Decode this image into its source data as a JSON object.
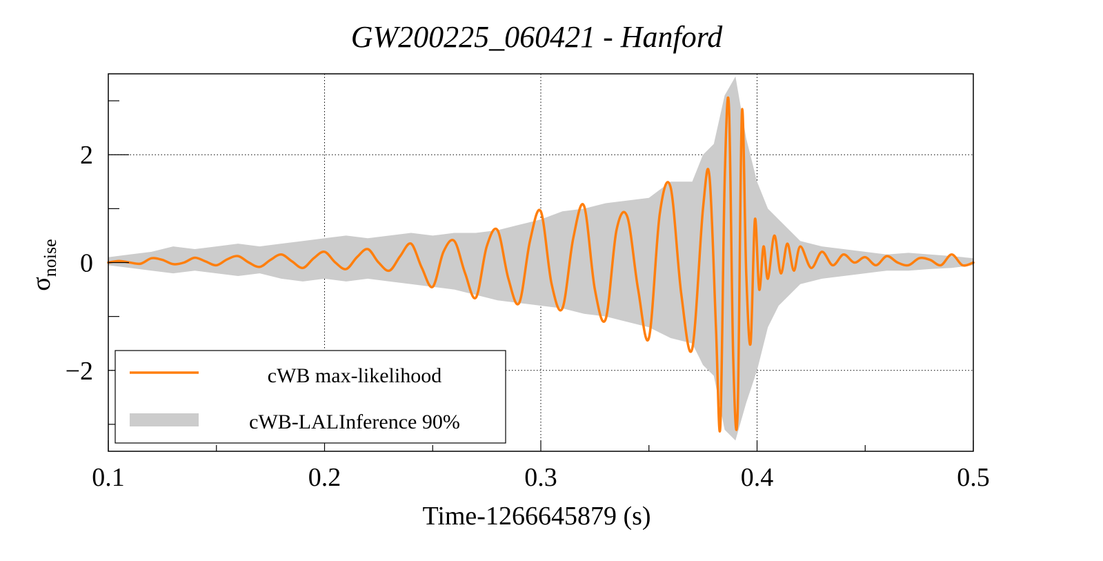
{
  "chart_data": {
    "type": "line",
    "title": "GW200225_060421 - Hanford",
    "xlabel": "Time-1266645879 (s)",
    "ylabel": "σ",
    "ylabel_sub": "noise",
    "xlim": [
      0.1,
      0.5
    ],
    "ylim": [
      -3.5,
      3.5
    ],
    "xticks": [
      0.1,
      0.2,
      0.3,
      0.4,
      0.5
    ],
    "xtick_labels": [
      "0.1",
      "0.2",
      "0.3",
      "0.4",
      "0.5"
    ],
    "yticks": [
      -2,
      0,
      2
    ],
    "ytick_labels": [
      "−2",
      "0",
      "2"
    ],
    "grid": true,
    "legend_position": "bottom-left",
    "colors": {
      "line": "#ff7f0e",
      "band": "#cccccc",
      "grid": "#000000"
    },
    "series": [
      {
        "name": "cWB max-likelihood",
        "kind": "line",
        "x": [
          0.1,
          0.105,
          0.11,
          0.115,
          0.12,
          0.125,
          0.13,
          0.135,
          0.14,
          0.145,
          0.15,
          0.155,
          0.16,
          0.165,
          0.17,
          0.175,
          0.18,
          0.185,
          0.19,
          0.195,
          0.2,
          0.205,
          0.21,
          0.215,
          0.22,
          0.225,
          0.23,
          0.235,
          0.24,
          0.245,
          0.25,
          0.255,
          0.26,
          0.265,
          0.27,
          0.275,
          0.28,
          0.285,
          0.29,
          0.295,
          0.3,
          0.305,
          0.31,
          0.315,
          0.32,
          0.325,
          0.33,
          0.335,
          0.34,
          0.345,
          0.35,
          0.355,
          0.36,
          0.365,
          0.37,
          0.375,
          0.378,
          0.381,
          0.383,
          0.385,
          0.387,
          0.389,
          0.391,
          0.393,
          0.395,
          0.397,
          0.399,
          0.401,
          0.403,
          0.405,
          0.408,
          0.411,
          0.414,
          0.417,
          0.42,
          0.425,
          0.43,
          0.435,
          0.44,
          0.445,
          0.45,
          0.455,
          0.46,
          0.465,
          0.47,
          0.475,
          0.48,
          0.485,
          0.49,
          0.495,
          0.5
        ],
        "values": [
          0.0,
          0.03,
          0.0,
          -0.02,
          0.08,
          0.05,
          -0.03,
          0.0,
          0.09,
          0.02,
          -0.05,
          0.06,
          0.12,
          0.0,
          -0.08,
          0.05,
          0.15,
          0.02,
          -0.1,
          0.08,
          0.2,
          0.0,
          -0.12,
          0.1,
          0.25,
          0.0,
          -0.15,
          0.12,
          0.35,
          -0.1,
          -0.45,
          0.2,
          0.4,
          -0.2,
          -0.65,
          0.3,
          0.6,
          -0.3,
          -0.75,
          0.4,
          0.95,
          -0.4,
          -0.85,
          0.45,
          1.05,
          -0.5,
          -1.05,
          0.6,
          0.85,
          -0.5,
          -1.4,
          0.9,
          1.4,
          -0.6,
          -1.6,
          1.0,
          1.6,
          -1.2,
          -3.05,
          1.5,
          2.9,
          -1.8,
          -2.8,
          2.8,
          -0.2,
          -1.5,
          0.8,
          -0.5,
          0.3,
          -0.3,
          0.5,
          -0.2,
          0.35,
          -0.15,
          0.3,
          -0.1,
          0.2,
          -0.05,
          0.15,
          0.0,
          0.1,
          -0.05,
          0.12,
          0.0,
          -0.05,
          0.08,
          0.05,
          -0.05,
          0.15,
          -0.05,
          0.0
        ]
      },
      {
        "name": "cWB-LALInference 90%",
        "kind": "band",
        "x": [
          0.1,
          0.11,
          0.12,
          0.13,
          0.14,
          0.15,
          0.16,
          0.17,
          0.18,
          0.19,
          0.2,
          0.21,
          0.22,
          0.23,
          0.24,
          0.25,
          0.26,
          0.27,
          0.28,
          0.29,
          0.3,
          0.31,
          0.32,
          0.33,
          0.34,
          0.35,
          0.36,
          0.37,
          0.375,
          0.38,
          0.385,
          0.39,
          0.395,
          0.4,
          0.405,
          0.41,
          0.42,
          0.43,
          0.44,
          0.45,
          0.46,
          0.47,
          0.48,
          0.49,
          0.5
        ],
        "lower": [
          -0.05,
          -0.1,
          -0.15,
          -0.2,
          -0.15,
          -0.2,
          -0.25,
          -0.2,
          -0.3,
          -0.35,
          -0.3,
          -0.35,
          -0.3,
          -0.35,
          -0.4,
          -0.45,
          -0.5,
          -0.6,
          -0.7,
          -0.75,
          -0.8,
          -0.85,
          -0.95,
          -1.0,
          -1.1,
          -1.2,
          -1.4,
          -1.5,
          -1.9,
          -2.1,
          -3.1,
          -3.3,
          -2.6,
          -2.0,
          -1.2,
          -0.8,
          -0.4,
          -0.3,
          -0.25,
          -0.2,
          -0.15,
          -0.15,
          -0.12,
          -0.1,
          -0.05
        ],
        "upper": [
          0.1,
          0.15,
          0.2,
          0.3,
          0.25,
          0.3,
          0.35,
          0.3,
          0.35,
          0.4,
          0.45,
          0.5,
          0.45,
          0.5,
          0.55,
          0.5,
          0.55,
          0.55,
          0.6,
          0.7,
          0.8,
          0.95,
          1.0,
          1.1,
          1.15,
          1.2,
          1.5,
          1.5,
          2.0,
          2.2,
          3.1,
          3.45,
          2.3,
          1.5,
          1.0,
          0.8,
          0.4,
          0.3,
          0.25,
          0.2,
          0.15,
          0.18,
          0.15,
          0.12,
          0.08
        ]
      }
    ]
  }
}
